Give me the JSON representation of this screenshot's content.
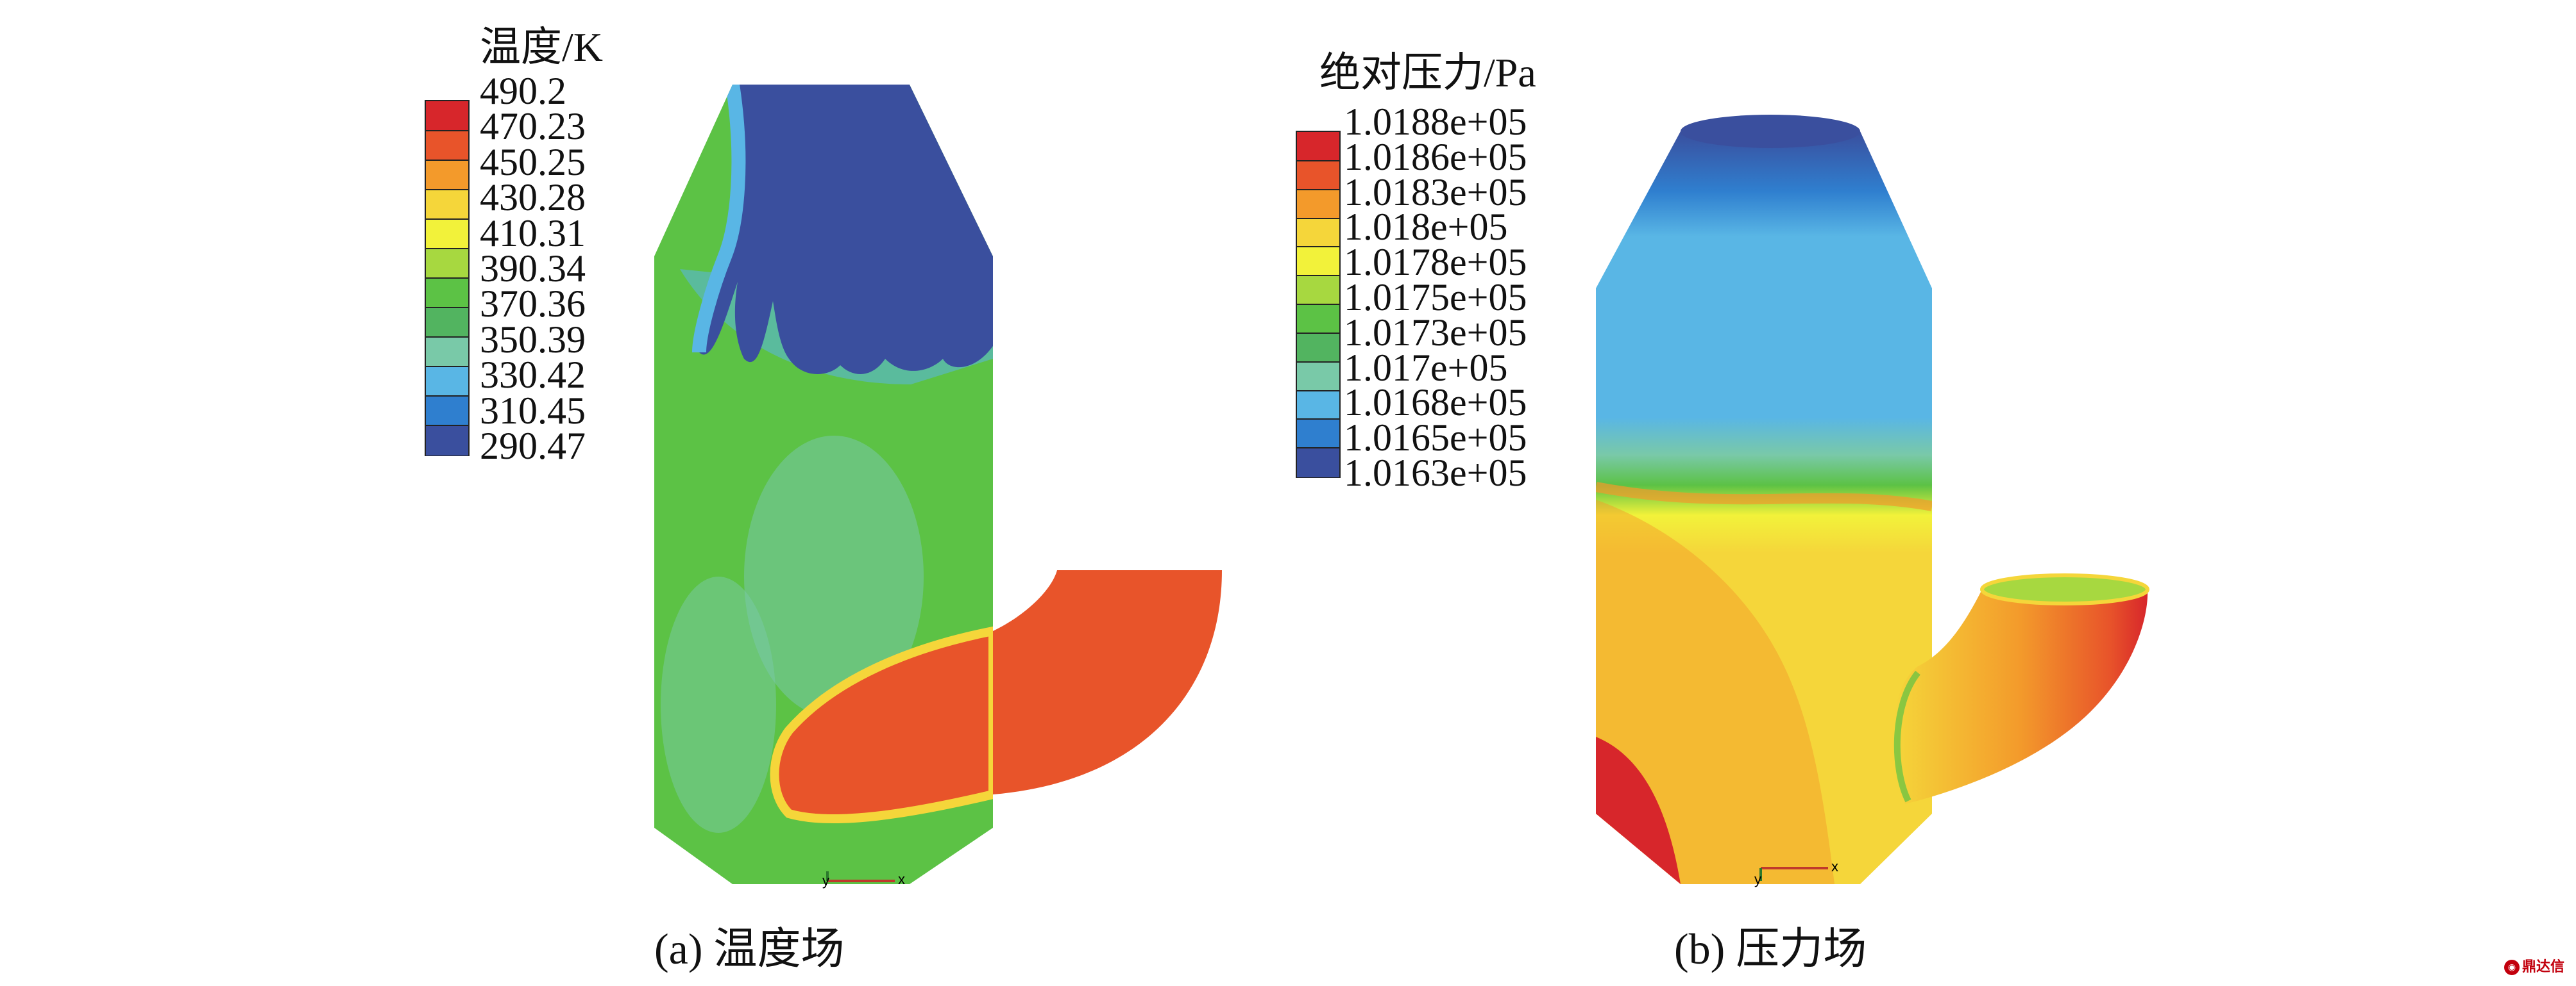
{
  "panel_a": {
    "legend_title": "温度/K",
    "legend_values": [
      "490.2",
      "470.23",
      "450.25",
      "430.28",
      "410.31",
      "390.34",
      "370.36",
      "350.39",
      "330.42",
      "310.45",
      "290.47"
    ],
    "caption": "(a) 温度场"
  },
  "panel_b": {
    "legend_title": "绝对压力/Pa",
    "legend_values": [
      "1.0188e+05",
      "1.0186e+05",
      "1.0183e+05",
      "1.018e+05",
      "1.0178e+05",
      "1.0175e+05",
      "1.0173e+05",
      "1.017e+05",
      "1.0168e+05",
      "1.0165e+05",
      "1.0163e+05"
    ],
    "caption": "(b) 压力场"
  },
  "colormap": [
    "#d7262b",
    "#e8542a",
    "#f39a2b",
    "#f5d63a",
    "#f2f23a",
    "#a7d840",
    "#5cc245",
    "#52b460",
    "#79c9a8",
    "#59b6e5",
    "#2f7fcf",
    "#3a4f9e"
  ],
  "axis_labels": {
    "y": "y",
    "x": "x"
  },
  "watermark": {
    "icon": "logo-icon",
    "text": "鼎达信"
  }
}
